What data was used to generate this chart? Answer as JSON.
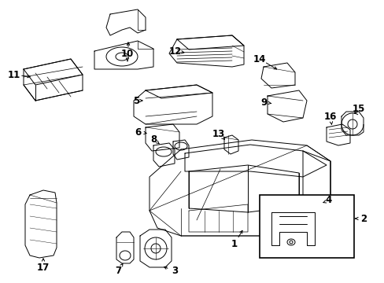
{
  "background_color": "#ffffff",
  "figsize": [
    4.89,
    3.6
  ],
  "dpi": 100,
  "image_b64": ""
}
